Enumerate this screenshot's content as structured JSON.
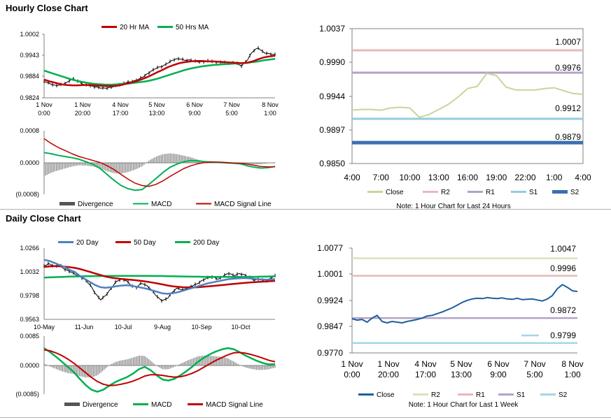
{
  "sections": {
    "hourly_title": "Hourly Close Chart",
    "daily_title": "Daily Close Chart"
  },
  "colors": {
    "ma_short": "#c00000",
    "ma_long": "#00b050",
    "ma20_day": "#4f81bd",
    "divergence": "#808080",
    "close_light": "#c4d79b",
    "close_dark": "#1f5e9e",
    "r2_hourly": "#e6b9b8",
    "r1_hourly": "#b3a2c7",
    "s1_hourly": "#93cddd",
    "s2_hourly": "#3a6fb0",
    "r2_weekly": "#d7e4bc",
    "r1_weekly": "#e6b9b8",
    "s1_weekly": "#b3a2c7",
    "s2_weekly": "#a5d5e6"
  },
  "chart_data": [
    {
      "id": "hourly_price",
      "type": "line",
      "title": "",
      "legend": [
        "20 Hr MA",
        "50 Hrs MA"
      ],
      "legend_position": "top",
      "x_ticks": [
        [
          "1 Nov",
          "0:00"
        ],
        [
          "1 Nov",
          "20:00"
        ],
        [
          "4 Nov",
          "17:00"
        ],
        [
          "5 Nov",
          "13:00"
        ],
        [
          "6 Nov",
          "9:00"
        ],
        [
          "7 Nov",
          "5:00"
        ],
        [
          "8 Nov",
          "1:00"
        ]
      ],
      "y_ticks": [
        "1.0002",
        "0.9943",
        "0.9884",
        "0.9824"
      ],
      "ylim": [
        0.9824,
        1.0002
      ],
      "series": [
        {
          "name": "Close",
          "values": [
            0.987,
            0.9863,
            0.9857,
            0.9861,
            0.9867,
            0.9879,
            0.987,
            0.986,
            0.9858,
            0.9856,
            0.9853,
            0.9851,
            0.9853,
            0.9858,
            0.9865,
            0.9869,
            0.9872,
            0.9877,
            0.9886,
            0.9898,
            0.9909,
            0.9913,
            0.9922,
            0.993,
            0.9933,
            0.9929,
            0.9931,
            0.9926,
            0.9924,
            0.9926,
            0.9925,
            0.9924,
            0.9924,
            0.9922,
            0.9921,
            0.9912,
            0.9928,
            0.9955,
            0.9965,
            0.995,
            0.9946,
            0.9944
          ]
        },
        {
          "name": "20 Hr MA",
          "values": [
            0.9875,
            0.987,
            0.9866,
            0.9862,
            0.986,
            0.9859,
            0.9859,
            0.986,
            0.986,
            0.9859,
            0.9858,
            0.9857,
            0.9857,
            0.9858,
            0.9861,
            0.9865,
            0.9869,
            0.9874,
            0.988,
            0.9887,
            0.9895,
            0.9902,
            0.991,
            0.9916,
            0.9921,
            0.9924,
            0.9926,
            0.9927,
            0.9927,
            0.9926,
            0.9926,
            0.9925,
            0.9924,
            0.9923,
            0.9922,
            0.9921,
            0.9922,
            0.9926,
            0.9932,
            0.9937,
            0.994,
            0.9942
          ]
        },
        {
          "name": "50 Hrs MA",
          "values": [
            0.99,
            0.9895,
            0.989,
            0.9885,
            0.988,
            0.9875,
            0.9871,
            0.9868,
            0.9865,
            0.9863,
            0.9862,
            0.9861,
            0.9861,
            0.9862,
            0.9863,
            0.9864,
            0.9866,
            0.9868,
            0.987,
            0.9873,
            0.9877,
            0.9882,
            0.9887,
            0.9892,
            0.9897,
            0.9902,
            0.9906,
            0.9909,
            0.9912,
            0.9914,
            0.9916,
            0.9917,
            0.9918,
            0.9919,
            0.992,
            0.9921,
            0.9922,
            0.9924,
            0.9926,
            0.9929,
            0.9931,
            0.9933
          ]
        }
      ]
    },
    {
      "id": "hourly_macd",
      "type": "line",
      "legend": [
        "Divergence",
        "MACD",
        "MACD Signal Line"
      ],
      "legend_position": "bottom",
      "y_ticks": [
        "0.0008",
        "0.0000",
        "(0.0008)"
      ],
      "ylim": [
        -0.0008,
        0.0008
      ],
      "series": [
        {
          "name": "MACD",
          "values": [
            0.00025,
            0.00022,
            0.00018,
            0.00015,
            0.00012,
            8e-05,
            2e-05,
            -5e-05,
            -0.00015,
            -0.0003,
            -0.00045,
            -0.00058,
            -0.00066,
            -0.0007,
            -0.00068,
            -0.00055,
            -0.0004,
            -0.00025,
            -0.00012,
            -4e-05,
            2e-05,
            5e-05,
            4e-05,
            2e-05,
            1e-05,
            0.0,
            -1e-05,
            -2e-05,
            -3e-05,
            -8e-05,
            -0.00012,
            -0.00014,
            -0.00013,
            -0.0001
          ]
        },
        {
          "name": "MACD Signal Line",
          "values": [
            0.0006,
            0.00048,
            0.00038,
            0.0003,
            0.00022,
            0.00015,
            0.0001,
            5e-05,
            0.0,
            -8e-05,
            -0.00018,
            -0.0003,
            -0.00042,
            -0.00052,
            -0.00058,
            -0.0006,
            -0.00055,
            -0.00046,
            -0.00035,
            -0.00025,
            -0.00015,
            -8e-05,
            -3e-05,
            0.0,
            1e-05,
            1e-05,
            0.0,
            -1e-05,
            -2e-05,
            -4e-05,
            -7e-05,
            -0.0001,
            -0.00011,
            -0.00011
          ]
        },
        {
          "name": "Divergence",
          "values": [
            -0.00035,
            -0.00026,
            -0.0002,
            -0.00015,
            -0.0001,
            -7e-05,
            -8e-05,
            -0.0001,
            -0.00015,
            -0.00022,
            -0.00027,
            -0.00028,
            -0.00024,
            -0.00018,
            -0.0001,
            5e-05,
            0.00015,
            0.00021,
            0.00023,
            0.00021,
            0.00017,
            0.00013,
            7e-05,
            2e-05,
            0.0,
            -1e-05,
            -1e-05,
            -1e-05,
            -1e-05,
            -4e-05,
            -5e-05,
            -4e-05,
            -2e-05,
            1e-05
          ]
        }
      ]
    },
    {
      "id": "hourly_24h",
      "type": "line",
      "note": "Note: 1 Hour Chart for Last 24 Hours",
      "legend": [
        "Close",
        "R2",
        "R1",
        "S1",
        "S2"
      ],
      "legend_position": "bottom",
      "x_ticks": [
        "4:00",
        "7:00",
        "10:00",
        "13:00",
        "16:00",
        "19:00",
        "22:00",
        "1:00",
        "4:00"
      ],
      "y_ticks": [
        "1.0037",
        "0.9990",
        "0.9944",
        "0.9897",
        "0.9850"
      ],
      "ylim": [
        0.985,
        1.0037
      ],
      "levels": [
        {
          "name": "R2",
          "value": 1.0007,
          "label": "1.0007"
        },
        {
          "name": "R1",
          "value": 0.9976,
          "label": "0.9976"
        },
        {
          "name": "S1",
          "value": 0.9912,
          "label": "0.9912"
        },
        {
          "name": "S2",
          "value": 0.9879,
          "label": "0.9879"
        }
      ],
      "series": [
        {
          "name": "Close",
          "values": [
            0.9924,
            0.9925,
            0.9925,
            0.9924,
            0.9927,
            0.9928,
            0.9927,
            0.9914,
            0.9918,
            0.9925,
            0.9932,
            0.9942,
            0.9954,
            0.9957,
            0.9975,
            0.9972,
            0.9956,
            0.9952,
            0.9952,
            0.9952,
            0.9954,
            0.9955,
            0.9951,
            0.9947,
            0.9946
          ]
        }
      ]
    },
    {
      "id": "daily_price",
      "type": "line",
      "legend": [
        "20 Day",
        "50 Day",
        "200 Day"
      ],
      "legend_position": "top",
      "x_ticks": [
        "10-May",
        "11-Jun",
        "10-Jul",
        "9-Aug",
        "10-Sep",
        "10-Oct"
      ],
      "y_ticks": [
        "1.0266",
        "1.0032",
        "0.9798",
        "0.9563"
      ],
      "ylim": [
        0.9563,
        1.0266
      ],
      "series": [
        {
          "name": "Close",
          "values": [
            1.009,
            1.011,
            1.008,
            1.01,
            1.006,
            1.004,
            1.001,
            0.998,
            0.995,
            0.99,
            0.982,
            0.976,
            0.98,
            0.986,
            0.993,
            0.996,
            0.995,
            0.99,
            0.988,
            0.992,
            0.989,
            0.985,
            0.979,
            0.975,
            0.977,
            0.983,
            0.987,
            0.985,
            0.988,
            0.99,
            0.992,
            0.995,
            0.997,
            0.998,
            0.996,
            1.0,
            1.002,
            0.999,
            1.001,
            1.0,
            0.998,
            0.995,
            0.997,
            0.993,
            0.996,
            0.999
          ]
        },
        {
          "name": "20 Day",
          "values": [
            1.015,
            1.014,
            1.012,
            1.01,
            1.008,
            1.005,
            1.003,
            0.999,
            0.996,
            0.993,
            0.99,
            0.988,
            0.9875,
            0.988,
            0.989,
            0.9895,
            0.99,
            0.9895,
            0.9885,
            0.9875,
            0.9865,
            0.985,
            0.9835,
            0.982,
            0.9815,
            0.982,
            0.983,
            0.9845,
            0.986,
            0.9875,
            0.989,
            0.9905,
            0.992,
            0.993,
            0.994,
            0.995,
            0.996,
            0.9965,
            0.9968,
            0.997,
            0.9968,
            0.9962,
            0.9958,
            0.9955,
            0.9956,
            0.996
          ]
        },
        {
          "name": "50 Day",
          "values": [
            1.008,
            1.0085,
            1.0088,
            1.0087,
            1.0083,
            1.0078,
            1.007,
            1.006,
            1.0045,
            1.003,
            1.0015,
            1.0,
            0.9985,
            0.9975,
            0.9968,
            0.9962,
            0.9958,
            0.9953,
            0.9948,
            0.9942,
            0.9935,
            0.9927,
            0.9918,
            0.9908,
            0.9898,
            0.989,
            0.9884,
            0.988,
            0.9878,
            0.9878,
            0.988,
            0.9884,
            0.9888,
            0.9893,
            0.9898,
            0.9903,
            0.9908,
            0.9913,
            0.9918,
            0.9922,
            0.9926,
            0.993,
            0.9933,
            0.9936,
            0.9939,
            0.9942
          ]
        },
        {
          "name": "200 Day",
          "values": [
            0.9975,
            0.9977,
            0.9979,
            0.9981,
            0.9983,
            0.9985,
            0.9986,
            0.9987,
            0.9988,
            0.9989,
            0.999,
            0.999,
            0.9991,
            0.9991,
            0.9991,
            0.9992,
            0.9992,
            0.9992,
            0.9992,
            0.9992,
            0.9992,
            0.9991,
            0.9991,
            0.999,
            0.9989,
            0.9988,
            0.9987,
            0.9986,
            0.9985,
            0.9984,
            0.9984,
            0.9983,
            0.9983,
            0.9982,
            0.9982,
            0.9982,
            0.9982,
            0.9982,
            0.9982,
            0.9982,
            0.9983,
            0.9983,
            0.9984,
            0.9985,
            0.9986,
            0.9988
          ]
        }
      ]
    },
    {
      "id": "daily_macd",
      "type": "line",
      "legend": [
        "Divergence",
        "MACD",
        "MACD Signal Line"
      ],
      "legend_position": "bottom",
      "y_ticks": [
        "0.0085",
        "0.0000",
        "(0.0085)"
      ],
      "ylim": [
        -0.0085,
        0.0085
      ],
      "series": [
        {
          "name": "MACD",
          "values": [
            0.005,
            0.0038,
            0.0025,
            0.001,
            -0.0005,
            -0.002,
            -0.004,
            -0.0058,
            -0.0072,
            -0.0078,
            -0.0072,
            -0.006,
            -0.005,
            -0.0042,
            -0.0035,
            -0.0025,
            -0.0012,
            -0.0005,
            -0.0015,
            -0.003,
            -0.0042,
            -0.0045,
            -0.004,
            -0.003,
            -0.0018,
            -0.0005,
            0.001,
            0.0022,
            0.0032,
            0.004,
            0.0046,
            0.005,
            0.0047,
            0.0038,
            0.0028,
            0.002,
            0.0012,
            0.0006,
            0.0002,
            0.0003
          ]
        },
        {
          "name": "MACD Signal Line",
          "values": [
            0.0045,
            0.0042,
            0.0036,
            0.0028,
            0.0018,
            0.0006,
            -0.0008,
            -0.0022,
            -0.0036,
            -0.0048,
            -0.0056,
            -0.006,
            -0.0059,
            -0.0056,
            -0.0052,
            -0.0047,
            -0.004,
            -0.0032,
            -0.0028,
            -0.0028,
            -0.003,
            -0.0033,
            -0.0035,
            -0.0034,
            -0.003,
            -0.0024,
            -0.0016,
            -0.0006,
            0.0004,
            0.0014,
            0.0022,
            0.003,
            0.0036,
            0.0037,
            0.0035,
            0.0031,
            0.0026,
            0.002,
            0.0014,
            0.001
          ]
        },
        {
          "name": "Divergence",
          "values": [
            0.0005,
            -0.0004,
            -0.0011,
            -0.0018,
            -0.0023,
            -0.0026,
            -0.0032,
            -0.0036,
            -0.0036,
            -0.003,
            -0.0016,
            0.0,
            0.0009,
            0.0014,
            0.0017,
            0.0022,
            0.0028,
            0.0027,
            0.0013,
            -0.0002,
            -0.0012,
            -0.0012,
            -0.0005,
            0.0004,
            0.0012,
            0.0019,
            0.0026,
            0.0028,
            0.0028,
            0.0026,
            0.0024,
            0.002,
            0.0011,
            0.0001,
            -0.0007,
            -0.0011,
            -0.0014,
            -0.0014,
            -0.0012,
            -0.0007
          ]
        }
      ]
    },
    {
      "id": "weekly",
      "type": "line",
      "note": "Note: 1 Hour Chart for Last 1 Week",
      "legend": [
        "Close",
        "R2",
        "R1",
        "S1",
        "S2"
      ],
      "legend_position": "bottom",
      "x_ticks": [
        [
          "1 Nov",
          "0:00"
        ],
        [
          "1 Nov",
          "20:00"
        ],
        [
          "4 Nov",
          "17:00"
        ],
        [
          "5 Nov",
          "13:00"
        ],
        [
          "6 Nov",
          "9:00"
        ],
        [
          "7 Nov",
          "5:00"
        ],
        [
          "8 Nov",
          "1:00"
        ]
      ],
      "y_ticks": [
        "1.0077",
        "1.0001",
        "0.9924",
        "0.9847",
        "0.9770"
      ],
      "ylim": [
        0.977,
        1.0077
      ],
      "levels": [
        {
          "name": "R2",
          "value": 1.0047,
          "label": "1.0047"
        },
        {
          "name": "R1",
          "value": 0.9996,
          "label": "0.9996"
        },
        {
          "name": "S1",
          "value": 0.9872,
          "label": "0.9872"
        },
        {
          "name": "S2",
          "value": 0.9799,
          "label": "0.9799"
        }
      ],
      "series": [
        {
          "name": "Close",
          "values": [
            0.987,
            0.9866,
            0.9868,
            0.986,
            0.9872,
            0.988,
            0.9862,
            0.9858,
            0.9862,
            0.986,
            0.9858,
            0.9862,
            0.9865,
            0.9868,
            0.9872,
            0.9878,
            0.988,
            0.9885,
            0.989,
            0.9896,
            0.9902,
            0.991,
            0.9918,
            0.9924,
            0.9928,
            0.993,
            0.9929,
            0.9932,
            0.993,
            0.9929,
            0.9931,
            0.9928,
            0.9927,
            0.993,
            0.9926,
            0.9927,
            0.9928,
            0.9925,
            0.9922,
            0.9928,
            0.9938,
            0.9958,
            0.997,
            0.9962,
            0.9952,
            0.995
          ]
        }
      ]
    }
  ]
}
